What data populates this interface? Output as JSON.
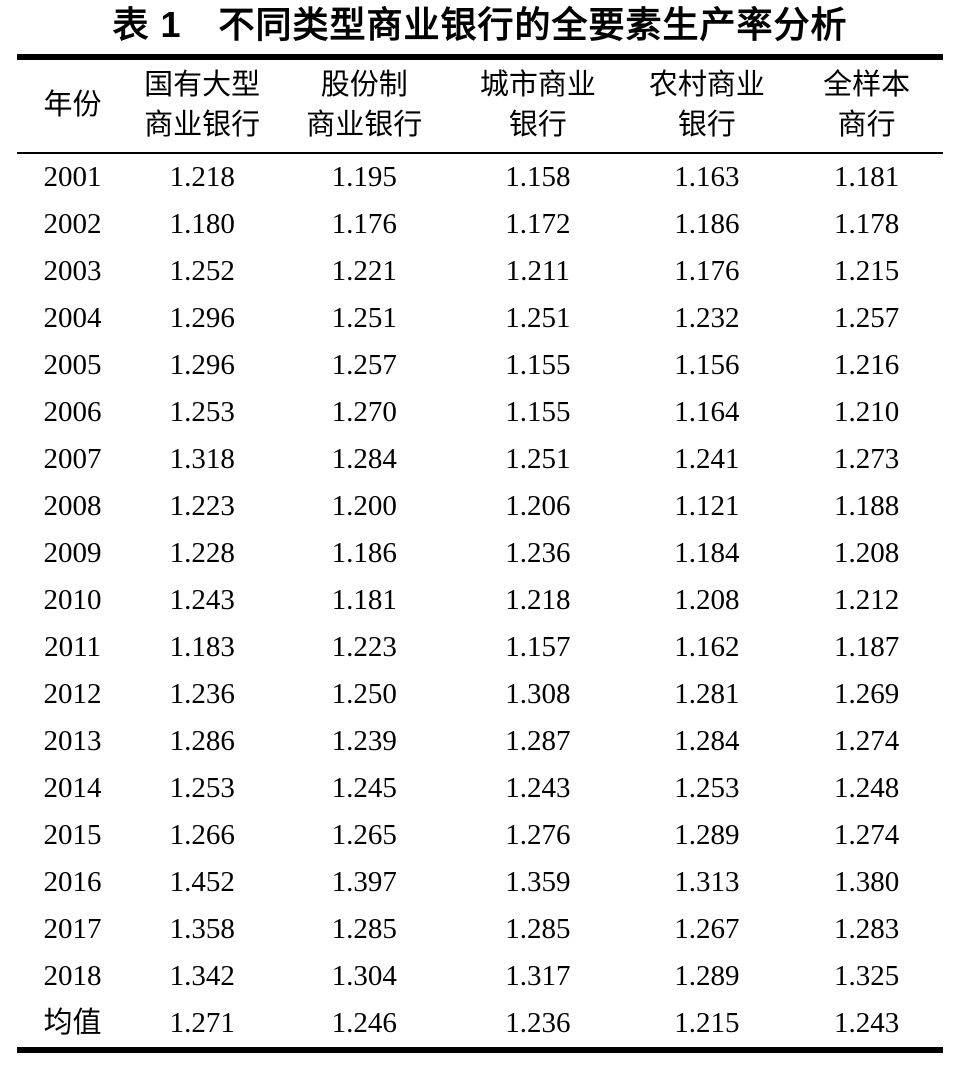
{
  "title": "表 1　不同类型商业银行的全要素生产率分析",
  "chart_data": {
    "type": "table",
    "title": "表 1 不同类型商业银行的全要素生产率分析",
    "columns": [
      {
        "line1": "年份",
        "line2": ""
      },
      {
        "line1": "国有大型",
        "line2": "商业银行"
      },
      {
        "line1": "股份制",
        "line2": "商业银行"
      },
      {
        "line1": "城市商业",
        "line2": "银行"
      },
      {
        "line1": "农村商业",
        "line2": "银行"
      },
      {
        "line1": "全样本",
        "line2": "商行"
      }
    ],
    "rows": [
      {
        "year": "2001",
        "values": [
          "1.218",
          "1.195",
          "1.158",
          "1.163",
          "1.181"
        ]
      },
      {
        "year": "2002",
        "values": [
          "1.180",
          "1.176",
          "1.172",
          "1.186",
          "1.178"
        ]
      },
      {
        "year": "2003",
        "values": [
          "1.252",
          "1.221",
          "1.211",
          "1.176",
          "1.215"
        ]
      },
      {
        "year": "2004",
        "values": [
          "1.296",
          "1.251",
          "1.251",
          "1.232",
          "1.257"
        ]
      },
      {
        "year": "2005",
        "values": [
          "1.296",
          "1.257",
          "1.155",
          "1.156",
          "1.216"
        ]
      },
      {
        "year": "2006",
        "values": [
          "1.253",
          "1.270",
          "1.155",
          "1.164",
          "1.210"
        ]
      },
      {
        "year": "2007",
        "values": [
          "1.318",
          "1.284",
          "1.251",
          "1.241",
          "1.273"
        ]
      },
      {
        "year": "2008",
        "values": [
          "1.223",
          "1.200",
          "1.206",
          "1.121",
          "1.188"
        ]
      },
      {
        "year": "2009",
        "values": [
          "1.228",
          "1.186",
          "1.236",
          "1.184",
          "1.208"
        ]
      },
      {
        "year": "2010",
        "values": [
          "1.243",
          "1.181",
          "1.218",
          "1.208",
          "1.212"
        ]
      },
      {
        "year": "2011",
        "values": [
          "1.183",
          "1.223",
          "1.157",
          "1.162",
          "1.187"
        ]
      },
      {
        "year": "2012",
        "values": [
          "1.236",
          "1.250",
          "1.308",
          "1.281",
          "1.269"
        ]
      },
      {
        "year": "2013",
        "values": [
          "1.286",
          "1.239",
          "1.287",
          "1.284",
          "1.274"
        ]
      },
      {
        "year": "2014",
        "values": [
          "1.253",
          "1.245",
          "1.243",
          "1.253",
          "1.248"
        ]
      },
      {
        "year": "2015",
        "values": [
          "1.266",
          "1.265",
          "1.276",
          "1.289",
          "1.274"
        ]
      },
      {
        "year": "2016",
        "values": [
          "1.452",
          "1.397",
          "1.359",
          "1.313",
          "1.380"
        ]
      },
      {
        "year": "2017",
        "values": [
          "1.358",
          "1.285",
          "1.285",
          "1.267",
          "1.283"
        ]
      },
      {
        "year": "2018",
        "values": [
          "1.342",
          "1.304",
          "1.317",
          "1.289",
          "1.325"
        ]
      },
      {
        "year": "均值",
        "values": [
          "1.271",
          "1.246",
          "1.236",
          "1.215",
          "1.243"
        ]
      }
    ]
  }
}
